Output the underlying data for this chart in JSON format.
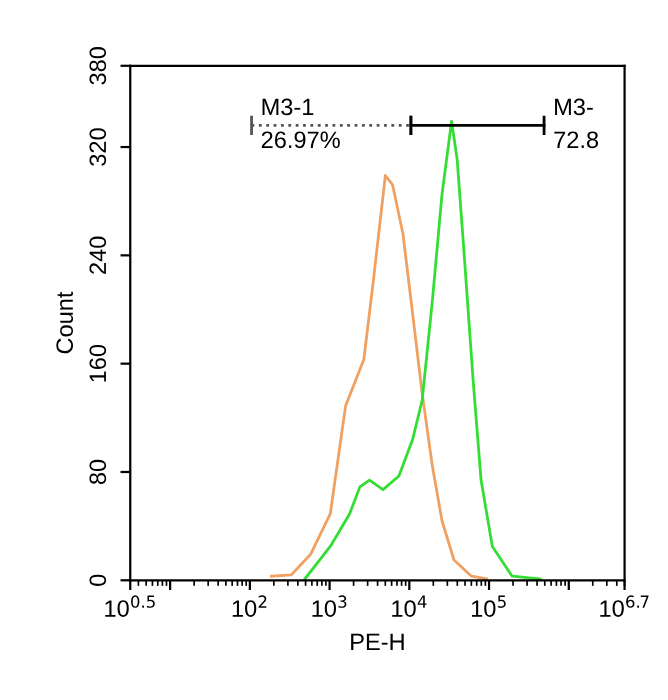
{
  "chart_data": {
    "type": "line",
    "xlabel": "PE-H",
    "ylabel": "Count",
    "log": "x",
    "xlim": [
      3.162,
      5011872
    ],
    "ylim": [
      0,
      380
    ],
    "xticks": [
      {
        "value": 3.162,
        "label": "10$^{0.5}$"
      },
      {
        "value": 10,
        "label": null
      },
      {
        "value": 100,
        "label": "10$^{2}$"
      },
      {
        "value": 1000,
        "label": "10$^{3}$"
      },
      {
        "value": 10000,
        "label": "10$^{4}$"
      },
      {
        "value": 100000,
        "label": "10$^{5}$"
      },
      {
        "value": 1000000,
        "label": null
      },
      {
        "value": 5011872,
        "label": "10$^{6.7}$"
      }
    ],
    "yticks": [
      0,
      80,
      160,
      240,
      320,
      380
    ],
    "grid": false,
    "legend": false,
    "marker": "none",
    "line_style": "solid",
    "series": [
      {
        "color": "#f0a060",
        "x": [
          186,
          331,
          575,
          1020,
          1590,
          2690,
          3550,
          5010,
          6170,
          8320,
          11000,
          14500,
          19500,
          25700,
          36300,
          60300,
          93300
        ],
        "values": [
          3,
          4,
          19,
          49,
          129,
          163,
          222,
          299,
          292,
          256,
          197,
          138,
          84,
          44,
          15,
          3,
          1
        ]
      },
      {
        "color": "#33dd33",
        "x": [
          490,
          1020,
          1780,
          2400,
          3160,
          4680,
          7410,
          11000,
          14500,
          19500,
          25700,
          33900,
          39800,
          47900,
          63100,
          79400,
          110000,
          195000,
          437000
        ],
        "values": [
          1,
          25,
          49,
          69,
          74,
          67,
          77,
          104,
          133,
          207,
          285,
          339,
          311,
          247,
          148,
          74,
          25,
          3,
          1
        ]
      },
      {
        "name": "M3-1",
        "color": "#555555",
        "line_style": "dotted",
        "x": [
          105,
          10470
        ],
        "values": [
          336,
          336
        ]
      },
      {
        "name": "M3-",
        "color": "#000000",
        "x": [
          10470,
          490000
        ],
        "values": [
          336,
          336
        ]
      }
    ],
    "annotations": [
      "26.97%",
      "72.8"
    ]
  }
}
